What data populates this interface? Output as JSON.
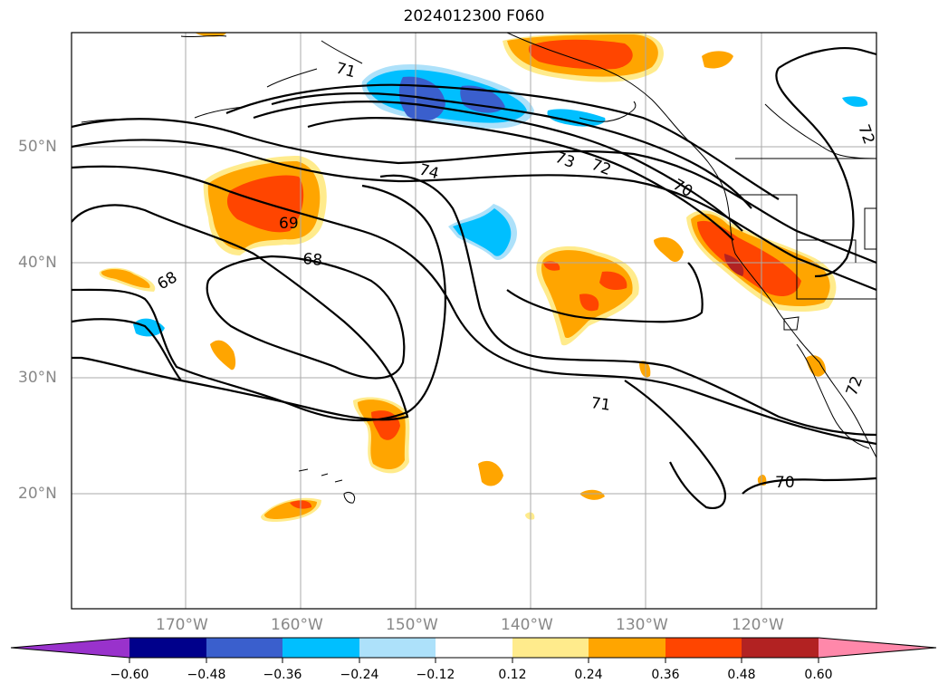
{
  "title": "2024012300 F060",
  "lat_labels": [
    "50°N",
    "40°N",
    "30°N",
    "20°N"
  ],
  "lon_labels": [
    "170°W",
    "160°W",
    "150°W",
    "140°W",
    "130°W",
    "120°W"
  ],
  "contour_labels": [
    "74",
    "73",
    "72",
    "71",
    "70",
    "69",
    "68",
    "71",
    "70",
    "72",
    "72",
    "68"
  ],
  "colorbar": {
    "ticks": [
      "−0.60",
      "−0.48",
      "−0.36",
      "−0.24",
      "−0.12",
      "0.12",
      "0.24",
      "0.36",
      "0.48",
      "0.60"
    ],
    "colors": [
      "#9932CC",
      "#00008B",
      "#3A5FCD",
      "#00BFFF",
      "#ADE1FA",
      "#FFFFFF",
      "#FFEB8C",
      "#FFA500",
      "#FF4500",
      "#B22222",
      "#FF88AA"
    ]
  }
}
